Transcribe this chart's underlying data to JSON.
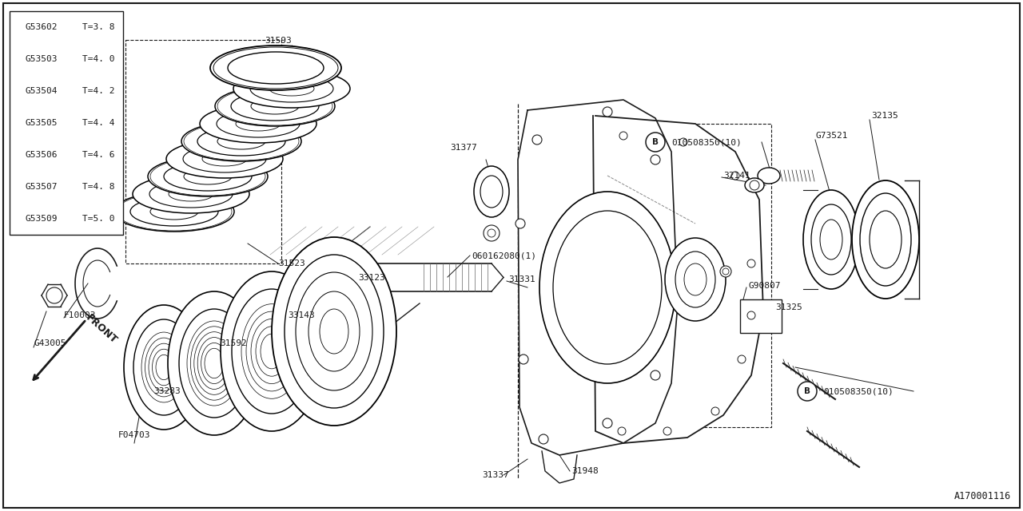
{
  "bg_color": "#ffffff",
  "line_color": "#1a1a1a",
  "part_number_bottom_right": "A170001116",
  "table_rows": [
    [
      "G53602",
      "T=3. 8"
    ],
    [
      "G53503",
      "T=4. 0"
    ],
    [
      "G53504",
      "T=4. 2"
    ],
    [
      "G53505",
      "T=4. 4"
    ],
    [
      "G53506",
      "T=4. 6"
    ],
    [
      "G53507",
      "T=4. 8"
    ],
    [
      "G53509",
      "T=5. 0"
    ]
  ],
  "fig_w": 12.8,
  "fig_h": 6.4,
  "dpi": 100
}
